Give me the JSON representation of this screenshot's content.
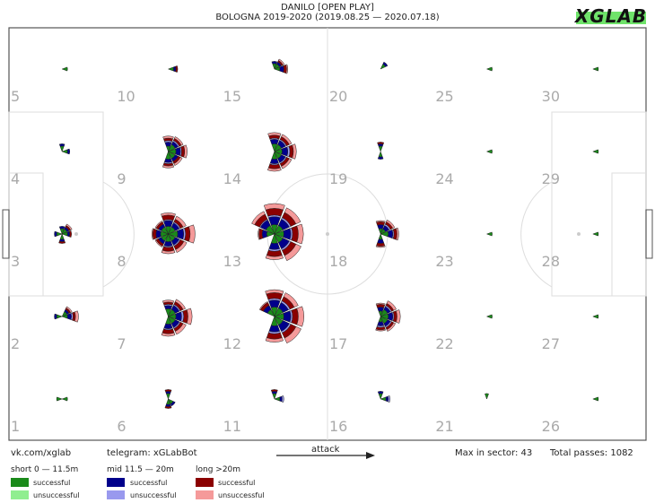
{
  "header": {
    "title": "DANILO [OPEN PLAY]",
    "subtitle": "BOLOGNA 2019-2020 (2019.08.25 — 2020.07.18)",
    "brand": "XGLAB"
  },
  "footer": {
    "vk": "vk.com/xglab",
    "telegram": "telegram: xGLabBot",
    "attack": "attack",
    "max_sector": "Max in sector: 43",
    "total": "Total passes: 1082"
  },
  "legend": {
    "groups": [
      {
        "title": "short 0 — 11.5m",
        "ok_label": "successful",
        "bad_label": "unsuccessful",
        "ok_color": "#1a8a1a",
        "bad_color": "#90ee90"
      },
      {
        "title": "mid 11.5 — 20m",
        "ok_label": "successful",
        "bad_label": "unsuccessful",
        "ok_color": "#00008b",
        "bad_color": "#9999ee"
      },
      {
        "title": "long >20m",
        "ok_label": "successful",
        "bad_label": "unsuccessful",
        "ok_color": "#8b0000",
        "bad_color": "#f59a9a"
      }
    ]
  },
  "chart_data": {
    "type": "polar-sector-grid",
    "grid": {
      "columns": 6,
      "rows": 5
    },
    "max_in_sector": 43,
    "total_passes": 1082,
    "zone_labels": [
      "1",
      "2",
      "3",
      "4",
      "5",
      "6",
      "7",
      "8",
      "9",
      "10",
      "11",
      "12",
      "13",
      "14",
      "15",
      "16",
      "17",
      "18",
      "19",
      "20",
      "21",
      "22",
      "23",
      "24",
      "25",
      "26",
      "27",
      "28",
      "29",
      "30"
    ],
    "directions": [
      "E",
      "NE",
      "N",
      "NW",
      "W",
      "SW",
      "S",
      "SE"
    ],
    "bins": [
      "short_successful",
      "short_unsuccessful",
      "mid_successful",
      "mid_unsuccessful",
      "long_successful",
      "long_unsuccessful"
    ],
    "zones": [
      {
        "zone": 1,
        "counts": {
          "E": [
            1,
            0,
            0,
            0,
            0,
            0
          ],
          "W": [
            1,
            0,
            0,
            0,
            0,
            0
          ]
        }
      },
      {
        "zone": 2,
        "counts": {
          "E": [
            1,
            0,
            2,
            1,
            2,
            3
          ],
          "NE": [
            1,
            0,
            1,
            0,
            1,
            1
          ],
          "W": [
            1,
            0,
            1,
            0,
            0,
            0
          ]
        }
      },
      {
        "zone": 3,
        "counts": {
          "NE": [
            1,
            0,
            1,
            0,
            1,
            1
          ],
          "N": [
            1,
            0,
            1,
            0,
            0,
            0
          ],
          "E": [
            1,
            0,
            1,
            0,
            1,
            0
          ],
          "S": [
            1,
            0,
            1,
            0,
            1,
            0
          ],
          "W": [
            1,
            0,
            1,
            0,
            0,
            0
          ]
        }
      },
      {
        "zone": 4,
        "counts": {
          "N": [
            1,
            0,
            1,
            0,
            0,
            0
          ],
          "E": [
            1,
            0,
            1,
            0,
            0,
            0
          ]
        }
      },
      {
        "zone": 5,
        "counts": {
          "E": [
            1,
            0,
            0,
            0,
            0,
            0
          ]
        }
      },
      {
        "zone": 6,
        "counts": {
          "N": [
            1,
            0,
            1,
            0,
            1,
            0
          ],
          "S": [
            1,
            0,
            1,
            0,
            1,
            0
          ],
          "SE": [
            1,
            0,
            1,
            0,
            0,
            0
          ]
        }
      },
      {
        "zone": 7,
        "counts": {
          "E": [
            2,
            0,
            4,
            2,
            5,
            6
          ],
          "NE": [
            2,
            0,
            3,
            1,
            3,
            3
          ],
          "N": [
            2,
            0,
            2,
            1,
            2,
            2
          ],
          "S": [
            2,
            0,
            3,
            1,
            4,
            3
          ],
          "SE": [
            2,
            0,
            3,
            1,
            3,
            4
          ]
        }
      },
      {
        "zone": 8,
        "counts": {
          "E": [
            3,
            0,
            5,
            2,
            6,
            8
          ],
          "NE": [
            2,
            0,
            3,
            1,
            3,
            4
          ],
          "N": [
            2,
            0,
            4,
            1,
            5,
            3
          ],
          "NW": [
            2,
            0,
            2,
            0,
            2,
            1
          ],
          "W": [
            2,
            0,
            3,
            0,
            3,
            1
          ],
          "SW": [
            2,
            0,
            2,
            0,
            2,
            1
          ],
          "S": [
            2,
            0,
            3,
            1,
            4,
            3
          ],
          "SE": [
            2,
            0,
            3,
            1,
            4,
            4
          ]
        }
      },
      {
        "zone": 9,
        "counts": {
          "E": [
            2,
            0,
            3,
            1,
            3,
            3
          ],
          "NE": [
            2,
            0,
            2,
            1,
            2,
            2
          ],
          "N": [
            1,
            0,
            2,
            1,
            2,
            2
          ],
          "S": [
            2,
            0,
            2,
            1,
            2,
            2
          ],
          "SE": [
            2,
            0,
            2,
            0,
            2,
            2
          ]
        }
      },
      {
        "zone": 10,
        "counts": {
          "E": [
            1,
            0,
            1,
            0,
            1,
            0
          ]
        }
      },
      {
        "zone": 11,
        "counts": {
          "N": [
            1,
            0,
            1,
            0,
            1,
            0
          ],
          "E": [
            1,
            0,
            1,
            1,
            0,
            0
          ]
        }
      },
      {
        "zone": 12,
        "counts": {
          "E": [
            3,
            0,
            6,
            2,
            8,
            10
          ],
          "NE": [
            3,
            0,
            5,
            2,
            6,
            7
          ],
          "N": [
            3,
            0,
            6,
            2,
            8,
            5
          ],
          "NW": [
            2,
            0,
            3,
            0,
            3,
            1
          ],
          "S": [
            3,
            0,
            5,
            2,
            7,
            5
          ],
          "SE": [
            3,
            0,
            6,
            2,
            8,
            10
          ]
        }
      },
      {
        "zone": 13,
        "counts": {
          "E": [
            3,
            0,
            6,
            2,
            8,
            9
          ],
          "NE": [
            3,
            0,
            6,
            2,
            8,
            9
          ],
          "N": [
            3,
            0,
            7,
            2,
            10,
            9
          ],
          "NW": [
            3,
            0,
            5,
            1,
            7,
            5
          ],
          "W": [
            2,
            0,
            3,
            0,
            3,
            1
          ],
          "S": [
            3,
            0,
            5,
            2,
            7,
            5
          ],
          "SE": [
            3,
            0,
            6,
            2,
            8,
            10
          ]
        }
      },
      {
        "zone": 14,
        "counts": {
          "E": [
            2,
            0,
            4,
            2,
            4,
            4
          ],
          "NE": [
            2,
            0,
            3,
            1,
            3,
            3
          ],
          "N": [
            2,
            0,
            3,
            1,
            3,
            3
          ],
          "S": [
            2,
            0,
            3,
            1,
            4,
            3
          ],
          "SE": [
            2,
            0,
            3,
            1,
            3,
            3
          ]
        }
      },
      {
        "zone": 15,
        "counts": {
          "E": [
            1,
            0,
            2,
            0,
            2,
            1
          ],
          "NE": [
            1,
            0,
            1,
            0,
            1,
            1
          ],
          "N": [
            1,
            0,
            1,
            0,
            0,
            0
          ]
        }
      },
      {
        "zone": 16,
        "counts": {
          "E": [
            1,
            0,
            1,
            1,
            0,
            0
          ],
          "N": [
            1,
            0,
            1,
            0,
            0,
            0
          ]
        }
      },
      {
        "zone": 17,
        "counts": {
          "E": [
            2,
            0,
            3,
            1,
            3,
            4
          ],
          "NE": [
            2,
            0,
            2,
            1,
            2,
            3
          ],
          "N": [
            1,
            0,
            2,
            0,
            2,
            1
          ],
          "S": [
            1,
            0,
            2,
            1,
            2,
            1
          ],
          "SE": [
            2,
            0,
            2,
            1,
            2,
            2
          ]
        }
      },
      {
        "zone": 18,
        "counts": {
          "E": [
            2,
            0,
            3,
            1,
            3,
            2
          ],
          "NE": [
            1,
            0,
            2,
            1,
            2,
            2
          ],
          "N": [
            1,
            0,
            2,
            0,
            2,
            1
          ],
          "S": [
            1,
            0,
            2,
            0,
            2,
            1
          ]
        }
      },
      {
        "zone": 19,
        "counts": {
          "N": [
            1,
            0,
            1,
            0,
            1,
            0
          ],
          "S": [
            1,
            0,
            1,
            0,
            0,
            0
          ]
        }
      },
      {
        "zone": 20,
        "counts": {
          "NE": [
            1,
            0,
            1,
            0,
            0,
            0
          ]
        }
      },
      {
        "zone": 21,
        "counts": {
          "N": [
            1,
            0,
            0,
            0,
            0,
            0
          ]
        }
      },
      {
        "zone": 22,
        "counts": {
          "E": [
            1,
            0,
            0,
            0,
            0,
            0
          ]
        }
      },
      {
        "zone": 23,
        "counts": {
          "E": [
            1,
            0,
            0,
            0,
            0,
            0
          ]
        }
      },
      {
        "zone": 24,
        "counts": {
          "E": [
            1,
            0,
            0,
            0,
            0,
            0
          ]
        }
      },
      {
        "zone": 25,
        "counts": {
          "E": [
            1,
            0,
            0,
            0,
            0,
            0
          ]
        }
      },
      {
        "zone": 26,
        "counts": {
          "E": [
            1,
            0,
            0,
            0,
            0,
            0
          ]
        }
      },
      {
        "zone": 27,
        "counts": {
          "E": [
            1,
            0,
            0,
            0,
            0,
            0
          ]
        }
      },
      {
        "zone": 28,
        "counts": {
          "E": [
            1,
            0,
            0,
            0,
            0,
            0
          ]
        }
      },
      {
        "zone": 29,
        "counts": {
          "E": [
            1,
            0,
            0,
            0,
            0,
            0
          ]
        }
      },
      {
        "zone": 30,
        "counts": {
          "E": [
            1,
            0,
            0,
            0,
            0,
            0
          ]
        }
      }
    ]
  }
}
